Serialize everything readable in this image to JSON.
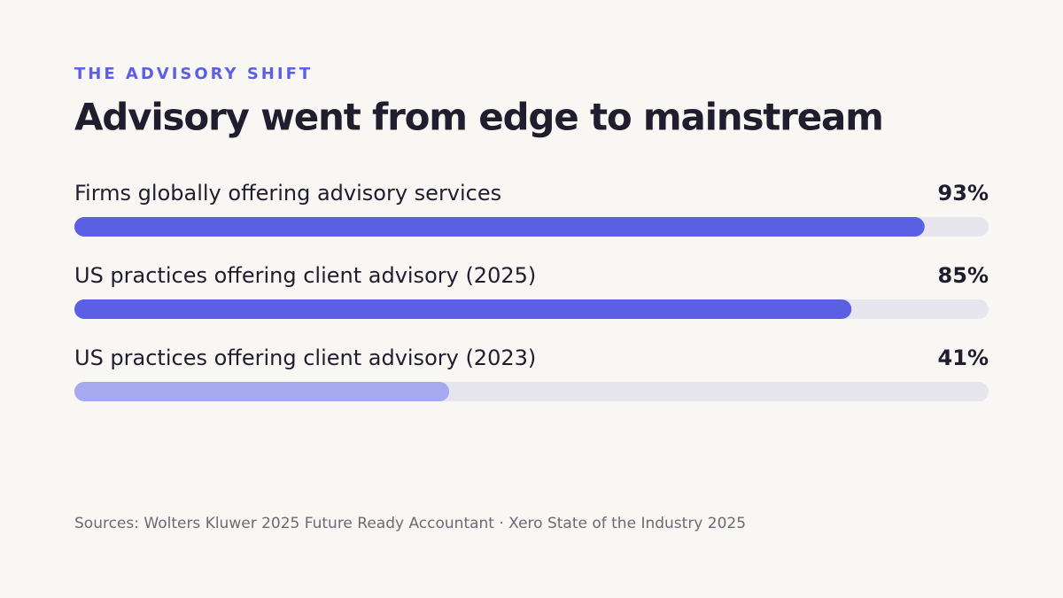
{
  "chart_data": {
    "type": "bar",
    "eyebrow": "THE ADVISORY SHIFT",
    "title": "Advisory went from edge to mainstream",
    "categories": [
      "Firms globally offering advisory services",
      "US practices offering client advisory (2025)",
      "US practices offering client advisory (2023)"
    ],
    "values": [
      93,
      85,
      41
    ],
    "value_labels": [
      "93%",
      "85%",
      "41%"
    ],
    "colors": [
      "#5b5fe3",
      "#5b5fe3",
      "#a7a9ef"
    ],
    "track_color": "#e7e6ef",
    "xlim": [
      0,
      100
    ],
    "source": "Sources: Wolters Kluwer 2025 Future Ready Accountant · Xero State of the Industry 2025"
  }
}
